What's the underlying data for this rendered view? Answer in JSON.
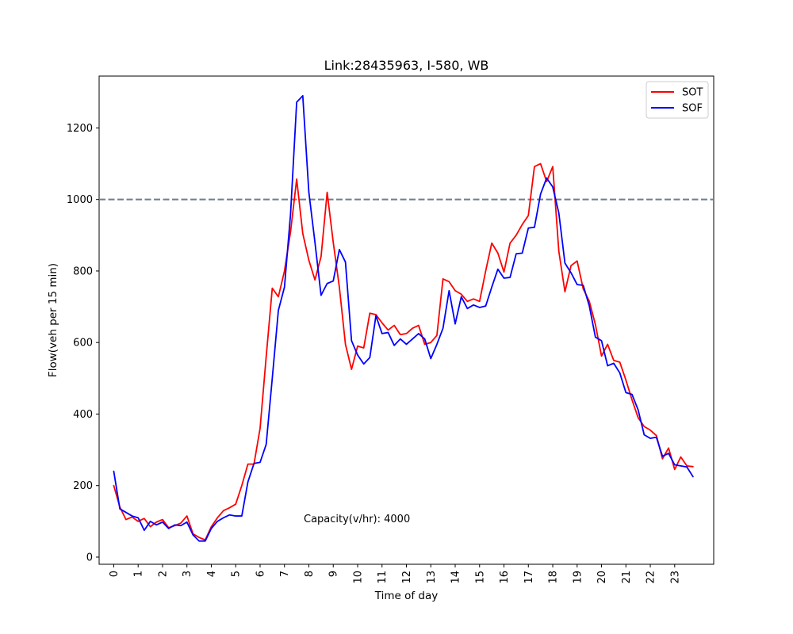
{
  "chart_data": {
    "type": "line",
    "title": "Link:28435963, I-580, WB",
    "xlabel": "Time of day",
    "ylabel": "Flow(veh per 15 min)",
    "xlim": [
      -0.6,
      24.6
    ],
    "ylim": [
      -20,
      1345
    ],
    "x_ticks": [
      0,
      1,
      2,
      3,
      4,
      5,
      6,
      7,
      8,
      9,
      10,
      11,
      12,
      13,
      14,
      15,
      16,
      17,
      18,
      19,
      20,
      21,
      22,
      23
    ],
    "y_ticks": [
      0,
      200,
      400,
      600,
      800,
      1000,
      1200
    ],
    "grid": false,
    "legend_position": "top-right",
    "annotation": "Capacity(v/hr): 4000",
    "reference_line": {
      "y": 1000,
      "color": "#708090",
      "style": "dashed"
    },
    "series": [
      {
        "name": "SOT",
        "color": "#ff0000",
        "x": [
          0,
          0.25,
          0.5,
          0.75,
          1,
          1.25,
          1.5,
          1.75,
          2,
          2.25,
          2.5,
          2.75,
          3,
          3.25,
          3.5,
          3.75,
          4,
          4.25,
          4.5,
          4.75,
          5,
          5.25,
          5.5,
          5.75,
          6,
          6.25,
          6.5,
          6.75,
          7,
          7.25,
          7.5,
          7.75,
          8,
          8.25,
          8.5,
          8.75,
          9,
          9.25,
          9.5,
          9.75,
          10,
          10.25,
          10.5,
          10.75,
          11,
          11.25,
          11.5,
          11.75,
          12,
          12.25,
          12.5,
          12.75,
          13,
          13.25,
          13.5,
          13.75,
          14,
          14.25,
          14.5,
          14.75,
          15,
          15.25,
          15.5,
          15.75,
          16,
          16.25,
          16.5,
          16.75,
          17,
          17.25,
          17.5,
          17.75,
          18,
          18.25,
          18.5,
          18.75,
          19,
          19.25,
          19.5,
          19.75,
          20,
          20.25,
          20.5,
          20.75,
          21,
          21.25,
          21.5,
          21.75,
          22,
          22.25,
          22.5,
          22.75,
          23,
          23.25,
          23.5,
          23.75
        ],
        "values": [
          200,
          140,
          105,
          112,
          100,
          108,
          85,
          98,
          105,
          82,
          88,
          95,
          115,
          65,
          55,
          48,
          85,
          110,
          130,
          138,
          148,
          200,
          260,
          260,
          360,
          560,
          752,
          728,
          800,
          910,
          1057,
          905,
          830,
          775,
          840,
          1020,
          880,
          755,
          595,
          525,
          590,
          585,
          682,
          678,
          655,
          635,
          648,
          622,
          625,
          640,
          648,
          595,
          600,
          620,
          778,
          770,
          745,
          735,
          715,
          722,
          715,
          800,
          878,
          850,
          797,
          878,
          900,
          930,
          955,
          1092,
          1100,
          1050,
          1092,
          855,
          742,
          815,
          828,
          750,
          715,
          650,
          562,
          595,
          550,
          545,
          495,
          440,
          390,
          365,
          355,
          340,
          275,
          305,
          245,
          280,
          255,
          253
        ]
      },
      {
        "name": "SOF",
        "color": "#0000ff",
        "x": [
          0,
          0.25,
          0.5,
          0.75,
          1,
          1.25,
          1.5,
          1.75,
          2,
          2.25,
          2.5,
          2.75,
          3,
          3.25,
          3.5,
          3.75,
          4,
          4.25,
          4.5,
          4.75,
          5,
          5.25,
          5.5,
          5.75,
          6,
          6.25,
          6.5,
          6.75,
          7,
          7.25,
          7.5,
          7.75,
          8,
          8.25,
          8.5,
          8.75,
          9,
          9.25,
          9.5,
          9.75,
          10,
          10.25,
          10.5,
          10.75,
          11,
          11.25,
          11.5,
          11.75,
          12,
          12.25,
          12.5,
          12.75,
          13,
          13.25,
          13.5,
          13.75,
          14,
          14.25,
          14.5,
          14.75,
          15,
          15.25,
          15.5,
          15.75,
          16,
          16.25,
          16.5,
          16.75,
          17,
          17.25,
          17.5,
          17.75,
          18,
          18.25,
          18.5,
          18.75,
          19,
          19.25,
          19.5,
          19.75,
          20,
          20.25,
          20.5,
          20.75,
          21,
          21.25,
          21.5,
          21.75,
          22,
          22.25,
          22.5,
          22.75,
          23,
          23.25,
          23.5,
          23.75
        ],
        "values": [
          240,
          135,
          125,
          115,
          110,
          75,
          100,
          90,
          98,
          80,
          90,
          88,
          98,
          62,
          45,
          45,
          80,
          100,
          110,
          118,
          115,
          115,
          210,
          262,
          265,
          315,
          500,
          690,
          755,
          960,
          1272,
          1290,
          1020,
          880,
          732,
          765,
          772,
          860,
          825,
          605,
          565,
          540,
          558,
          675,
          625,
          628,
          592,
          610,
          595,
          610,
          625,
          610,
          555,
          595,
          640,
          745,
          652,
          728,
          695,
          705,
          698,
          702,
          755,
          805,
          780,
          782,
          848,
          850,
          920,
          922,
          1015,
          1060,
          1035,
          962,
          822,
          795,
          762,
          760,
          702,
          615,
          605,
          535,
          542,
          515,
          460,
          455,
          412,
          342,
          332,
          335,
          282,
          290,
          258,
          255,
          252,
          225
        ]
      }
    ]
  }
}
